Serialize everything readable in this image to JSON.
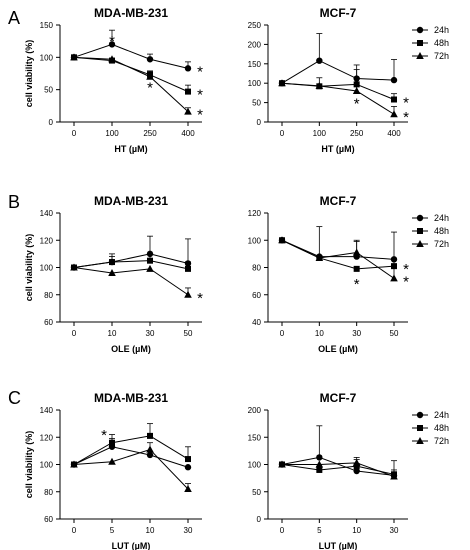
{
  "panel_letters": [
    "A",
    "B",
    "C"
  ],
  "legend": {
    "entries": [
      {
        "label": "24h",
        "marker": "circle"
      },
      {
        "label": "48h",
        "marker": "square"
      },
      {
        "label": "72h",
        "marker": "triangle"
      }
    ]
  },
  "chart_data": [
    {
      "type": "line",
      "panel": "A",
      "title": "MDA-MB-231",
      "xlabel": "HT (µM)",
      "ylabel": "cell viability (%)",
      "x": [
        "0",
        "100",
        "250",
        "400"
      ],
      "ylim": [
        0,
        150
      ],
      "yticks": [
        0,
        50,
        100,
        150
      ],
      "series": [
        {
          "name": "24h",
          "marker": "circle",
          "values": [
            100,
            120,
            97,
            83
          ],
          "err": [
            0,
            22,
            8,
            10
          ]
        },
        {
          "name": "48h",
          "marker": "square",
          "values": [
            100,
            95,
            73,
            47
          ],
          "err": [
            0,
            0,
            6,
            10
          ]
        },
        {
          "name": "72h",
          "marker": "triangle",
          "values": [
            100,
            97,
            70,
            16
          ],
          "err": [
            0,
            0,
            8,
            6
          ]
        }
      ],
      "annotations": [
        {
          "text": "*",
          "x": "100",
          "y": 130
        },
        {
          "text": "*",
          "x": "250",
          "y": 58
        },
        {
          "text": "*",
          "x": "400",
          "y": 83,
          "side": "right"
        },
        {
          "text": "*",
          "x": "400",
          "y": 47,
          "side": "right"
        },
        {
          "text": "*",
          "x": "400",
          "y": 16,
          "side": "right"
        }
      ]
    },
    {
      "type": "line",
      "panel": "A",
      "title": "MCF-7",
      "xlabel": "HT (µM)",
      "ylabel": "",
      "x": [
        "0",
        "100",
        "250",
        "400"
      ],
      "ylim": [
        0,
        250
      ],
      "yticks": [
        0,
        50,
        100,
        150,
        200,
        250
      ],
      "series": [
        {
          "name": "24h",
          "marker": "circle",
          "values": [
            100,
            158,
            112,
            108
          ],
          "err": [
            0,
            70,
            35,
            53
          ]
        },
        {
          "name": "48h",
          "marker": "square",
          "values": [
            100,
            92,
            97,
            58
          ],
          "err": [
            0,
            22,
            38,
            15
          ]
        },
        {
          "name": "72h",
          "marker": "triangle",
          "values": [
            100,
            93,
            80,
            20
          ],
          "err": [
            0,
            0,
            13,
            20
          ]
        }
      ],
      "annotations": [
        {
          "text": "*",
          "x": "250",
          "y": 55
        },
        {
          "text": "*",
          "x": "400",
          "y": 58,
          "side": "right"
        },
        {
          "text": "*",
          "x": "400",
          "y": 20,
          "side": "right"
        }
      ]
    },
    {
      "type": "line",
      "panel": "B",
      "title": "MDA-MB-231",
      "xlabel": "OLE (µM)",
      "ylabel": "cell viability (%)",
      "x": [
        "0",
        "10",
        "30",
        "50"
      ],
      "ylim": [
        60,
        140
      ],
      "yticks": [
        60,
        80,
        100,
        120,
        140
      ],
      "series": [
        {
          "name": "24h",
          "marker": "circle",
          "values": [
            100,
            104,
            110,
            103
          ],
          "err": [
            0,
            6,
            13,
            18
          ]
        },
        {
          "name": "48h",
          "marker": "square",
          "values": [
            100,
            104,
            105,
            99
          ],
          "err": [
            0,
            4,
            5,
            5
          ]
        },
        {
          "name": "72h",
          "marker": "triangle",
          "values": [
            100,
            96,
            99,
            80
          ],
          "err": [
            0,
            0,
            0,
            5
          ]
        }
      ],
      "annotations": [
        {
          "text": "*",
          "x": "50",
          "y": 80,
          "side": "right"
        }
      ]
    },
    {
      "type": "line",
      "panel": "B",
      "title": "MCF-7",
      "xlabel": "OLE (µM)",
      "ylabel": "",
      "x": [
        "0",
        "10",
        "30",
        "50"
      ],
      "ylim": [
        40,
        120
      ],
      "yticks": [
        40,
        60,
        80,
        100,
        120
      ],
      "series": [
        {
          "name": "24h",
          "marker": "circle",
          "values": [
            100,
            88,
            88,
            86
          ],
          "err": [
            0,
            22,
            12,
            20
          ]
        },
        {
          "name": "48h",
          "marker": "square",
          "values": [
            100,
            87,
            79,
            81
          ],
          "err": [
            0,
            0,
            0,
            0
          ]
        },
        {
          "name": "72h",
          "marker": "triangle",
          "values": [
            100,
            87,
            91,
            72
          ],
          "err": [
            0,
            0,
            8,
            14
          ]
        }
      ],
      "annotations": [
        {
          "text": "*",
          "x": "30",
          "y": 70
        },
        {
          "text": "*",
          "x": "50",
          "y": 81,
          "side": "right"
        },
        {
          "text": "*",
          "x": "50",
          "y": 72,
          "side": "right"
        }
      ]
    },
    {
      "type": "line",
      "panel": "C",
      "title": "MDA-MB-231",
      "xlabel": "LUT (µM)",
      "ylabel": "cell viability (%)",
      "x": [
        "0",
        "5",
        "10",
        "30"
      ],
      "ylim": [
        60,
        140
      ],
      "yticks": [
        60,
        80,
        100,
        120,
        140
      ],
      "series": [
        {
          "name": "24h",
          "marker": "circle",
          "values": [
            100,
            113,
            107,
            98
          ],
          "err": [
            0,
            6,
            9,
            0
          ]
        },
        {
          "name": "48h",
          "marker": "square",
          "values": [
            100,
            116,
            121,
            104
          ],
          "err": [
            0,
            6,
            9,
            9
          ]
        },
        {
          "name": "72h",
          "marker": "triangle",
          "values": [
            100,
            102,
            111,
            82
          ],
          "err": [
            0,
            0,
            0,
            4
          ]
        }
      ],
      "annotations": [
        {
          "text": "*",
          "x": "5",
          "y": 124,
          "side": "left"
        }
      ]
    },
    {
      "type": "line",
      "panel": "C",
      "title": "MCF-7",
      "xlabel": "LUT (µM)",
      "ylabel": "",
      "x": [
        "0",
        "5",
        "10",
        "30"
      ],
      "ylim": [
        0,
        200
      ],
      "yticks": [
        0,
        50,
        100,
        150,
        200
      ],
      "series": [
        {
          "name": "24h",
          "marker": "circle",
          "values": [
            100,
            113,
            88,
            80
          ],
          "err": [
            0,
            58,
            10,
            10
          ]
        },
        {
          "name": "48h",
          "marker": "square",
          "values": [
            100,
            90,
            97,
            82
          ],
          "err": [
            0,
            10,
            12,
            25
          ]
        },
        {
          "name": "72h",
          "marker": "triangle",
          "values": [
            100,
            100,
            103,
            78
          ],
          "err": [
            0,
            0,
            10,
            5
          ]
        }
      ],
      "annotations": []
    }
  ]
}
